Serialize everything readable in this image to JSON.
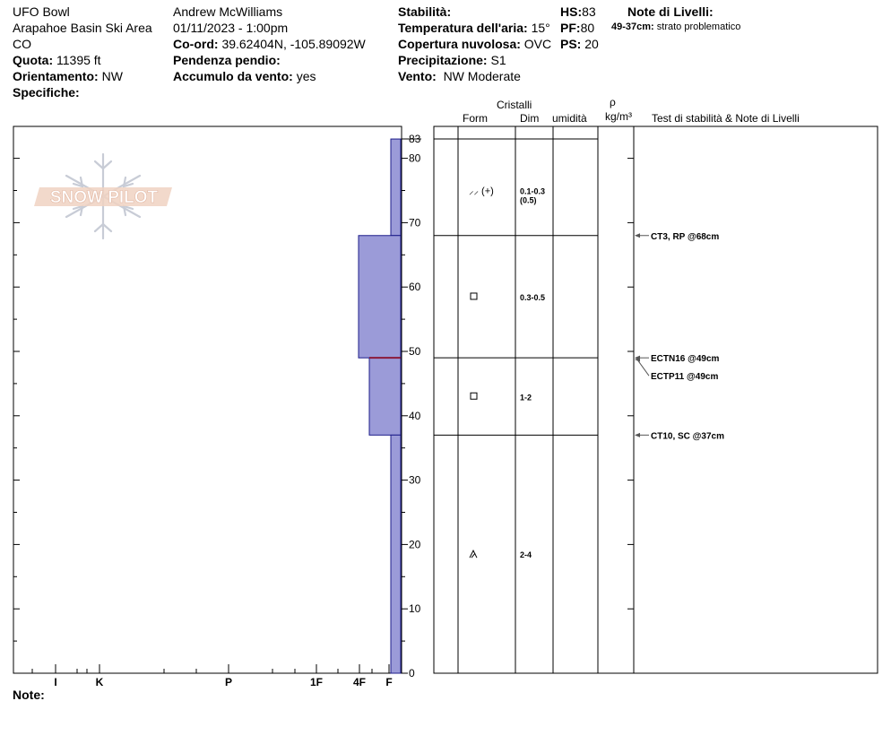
{
  "header": {
    "location": "UFO Bowl",
    "area": "Arapahoe Basin Ski Area",
    "state": "CO",
    "elevation_label": "Quota:",
    "elevation_value": "11395 ft",
    "aspect_label": "Orientamento:",
    "aspect_value": "NW",
    "specifics_label": "Specifiche:",
    "observer": "Andrew McWilliams",
    "datetime": "01/11/2023 - 1:00pm",
    "coord_label": "Co-ord:",
    "coord_value": "39.62404N, -105.89092W",
    "slope_label": "Pendenza pendio:",
    "wind_loading_label": "Accumulo da vento:",
    "wind_loading_value": "yes",
    "stability_label": "Stabilità:",
    "air_temp_label": "Temperatura dell'aria:",
    "air_temp_value": "15°",
    "cloud_label": "Copertura nuvolosa:",
    "cloud_value": "OVC",
    "precip_label": "Precipitazione:",
    "precip_value": "S1",
    "wind_label": "Vento:",
    "wind_value": "NW Moderate",
    "hs_label": "HS:",
    "hs_value": "83",
    "pf_label": "PF:",
    "pf_value": "80",
    "ps_label": "PS:",
    "ps_value": "20",
    "layer_notes_title": "Note di Livelli:",
    "layer_note_range": "49-37cm:",
    "layer_note_text": "strato problematico"
  },
  "logo_text": "SNOW PILOT",
  "notes_label": "Note:",
  "columns": {
    "crystals": "Cristalli",
    "form": "Form",
    "size": "Dim",
    "moisture": "umidità",
    "rho": "ρ",
    "density_unit": "kg/m³",
    "tests": "Test di stabilità & Note di Livelli"
  },
  "colors": {
    "layer_fill": "#9b9bd8",
    "layer_stroke": "#1c1c8a",
    "weak_line": "#8b1a3a",
    "arrow": "#555555"
  },
  "chart_data": {
    "type": "snow-profile",
    "y_axis": {
      "min": 0,
      "max": 83,
      "ticks": [
        "0",
        "10",
        "20",
        "30",
        "40",
        "50",
        "60",
        "70",
        "80",
        "83"
      ]
    },
    "x_axis": {
      "hardness_ticks": [
        "I",
        "K",
        "P",
        "1F",
        "4F",
        "F"
      ]
    },
    "hardness_layers": [
      {
        "top": 83,
        "bottom": 68,
        "hardness": "F"
      },
      {
        "top": 68,
        "bottom": 49,
        "hardness": "4F"
      },
      {
        "top": 49,
        "bottom": 37,
        "hardness": "4F-"
      },
      {
        "top": 37,
        "bottom": 0,
        "hardness": "F"
      }
    ],
    "layer_boundaries": [
      83,
      68,
      49,
      37
    ],
    "crystal_layers": [
      {
        "depth": 75,
        "form_symbol": "⸝⸝ (+)",
        "size": "0.1-0.3",
        "size2": "(0.5)"
      },
      {
        "depth": 58.5,
        "form_symbol": "□",
        "size": "0.3-0.5",
        "size2": ""
      },
      {
        "depth": 43,
        "form_symbol": "□",
        "size": "1-2",
        "size2": ""
      },
      {
        "depth": 18.5,
        "form_symbol": "⩕",
        "size": "2-4",
        "size2": ""
      }
    ],
    "tests": [
      {
        "label": "CT3, RP @68cm",
        "depth": 68
      },
      {
        "label": "ECTN16 @49cm",
        "depth": 49
      },
      {
        "label": "ECTP11 @49cm",
        "depth": 49
      },
      {
        "label": "CT10, SC @37cm",
        "depth": 37
      }
    ]
  }
}
